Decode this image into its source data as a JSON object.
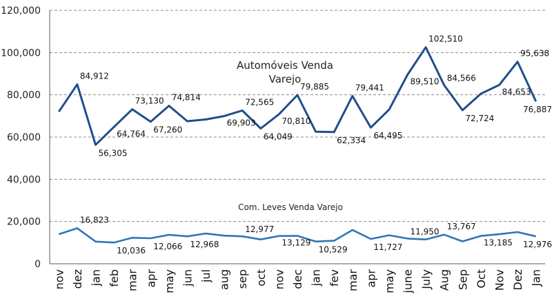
{
  "chart_data": {
    "type": "line",
    "categories": [
      "nov",
      "dez",
      "jan",
      "feb",
      "mar",
      "apr",
      "may",
      "jun",
      "jul",
      "aug",
      "sep",
      "oct",
      "nov",
      "dec",
      "jan",
      "fev",
      "mar",
      "apr",
      "may",
      "june",
      "July",
      "Aug",
      "Sep",
      "Oct",
      "Nov",
      "Dez",
      "Jan"
    ],
    "ylim": [
      0,
      120000
    ],
    "yticks": [
      "0",
      "20,000",
      "40,000",
      "60,000",
      "80,000",
      "100,000",
      "120,000"
    ],
    "grid": true,
    "series": [
      {
        "name": "Automóveis Venda Varejo",
        "name_lines": [
          "Automóveis Venda",
          "Varejo"
        ],
        "color": "#1f4e8c",
        "values": [
          72000,
          84912,
          56305,
          64764,
          73130,
          67260,
          74814,
          67500,
          68300,
          69903,
          72565,
          64049,
          70810,
          79885,
          62500,
          62334,
          79441,
          64495,
          73000,
          89510,
          102510,
          84566,
          72724,
          80500,
          84653,
          95638,
          76887
        ],
        "labels": [
          "",
          "84,912",
          "56,305",
          "64,764",
          "73,130",
          "67,260",
          "74,814",
          "",
          "",
          "69,903",
          "72,565",
          "64,049",
          "70,810",
          "79,885",
          "",
          "62,334",
          "79,441",
          "64,495",
          "",
          "89,510",
          "102,510",
          "84,566",
          "72,724",
          "",
          "84,653",
          "95,638",
          "76,887"
        ]
      },
      {
        "name": "Com. Leves Venda Varejo",
        "name_lines": [
          "Com. Leves Venda Varejo"
        ],
        "color": "#2e75b6",
        "values": [
          14000,
          16823,
          10500,
          10036,
          12300,
          12066,
          13700,
          12968,
          14300,
          13300,
          12977,
          11500,
          13129,
          13200,
          10529,
          10900,
          16000,
          11727,
          13500,
          11950,
          11500,
          13767,
          10600,
          13185,
          14000,
          15000,
          12976
        ],
        "labels": [
          "",
          "16,823",
          "",
          "10,036",
          "",
          "12,066",
          "",
          "12,968",
          "",
          "",
          "12,977",
          "",
          "13,129",
          "",
          "10,529",
          "",
          "",
          "11,727",
          "",
          "11,950",
          "",
          "13,767",
          "",
          "13,185",
          "",
          "",
          "12,976"
        ]
      }
    ]
  }
}
